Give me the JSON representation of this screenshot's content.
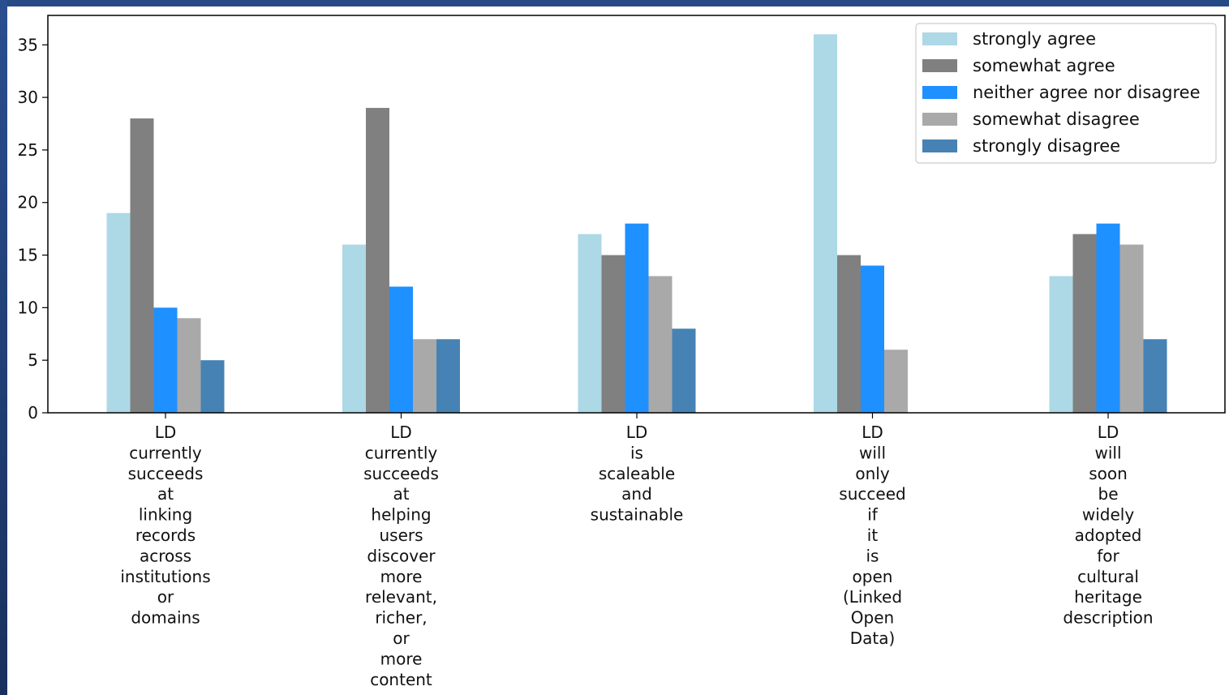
{
  "chart_data": {
    "type": "bar",
    "categories": [
      "LD currently succeeds at linking records across institutions or domains",
      "LD currently succeeds at helping users discover more relevant, richer, or more content",
      "LD is scaleable and sustainable",
      "LD will only succeed if it is open (Linked Open Data)",
      "LD will soon be widely adopted for cultural heritage description"
    ],
    "series": [
      {
        "name": "strongly agree",
        "color": "#add8e6",
        "values": [
          19,
          16,
          17,
          36,
          13
        ]
      },
      {
        "name": "somewhat agree",
        "color": "#808080",
        "values": [
          28,
          29,
          15,
          15,
          17
        ]
      },
      {
        "name": "neither agree nor disagree",
        "color": "#1e90ff",
        "values": [
          10,
          12,
          18,
          14,
          18
        ]
      },
      {
        "name": "somewhat disagree",
        "color": "#a9a9a9",
        "values": [
          9,
          7,
          13,
          6,
          16
        ]
      },
      {
        "name": "strongly disagree",
        "color": "#4682b4",
        "values": [
          5,
          7,
          8,
          0,
          7
        ]
      }
    ],
    "yticks": [
      0,
      5,
      10,
      15,
      20,
      25,
      30,
      35
    ],
    "ylim": [
      0,
      37.8
    ],
    "grid": false,
    "legend": "top-right"
  }
}
